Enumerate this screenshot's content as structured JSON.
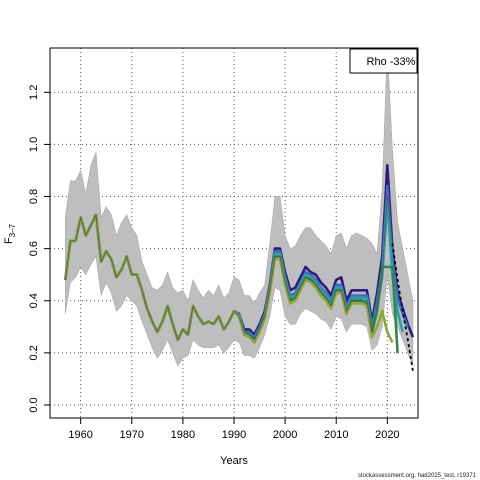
{
  "chart_data": {
    "type": "line",
    "xlabel": "Years",
    "ylabel": "F",
    "ylabel_sub": "3–7",
    "xlim": [
      1954,
      2026
    ],
    "ylim": [
      -0.05,
      1.37
    ],
    "x_ticks": [
      1960,
      1970,
      1980,
      1990,
      2000,
      2010,
      2020
    ],
    "y_ticks": [
      0.0,
      0.2,
      0.4,
      0.6,
      0.8,
      1.0,
      1.2
    ],
    "y_tick_labels": [
      "0.0",
      "0.2",
      "0.4",
      "0.6",
      "0.8",
      "1.0",
      "1.2"
    ],
    "grid": true,
    "legend_text": "Rho -33%",
    "legend_position": "top-right",
    "footer": "stockassessment.org, had2025_test, r19371",
    "colors": {
      "band": "#bebebe",
      "band_edge": "#a8a8a8",
      "estimate": "#555555",
      "projection": "#000000"
    },
    "confidence_band": {
      "x": [
        1957,
        1958,
        1959,
        1960,
        1961,
        1962,
        1963,
        1964,
        1965,
        1966,
        1967,
        1968,
        1969,
        1970,
        1971,
        1972,
        1973,
        1974,
        1975,
        1976,
        1977,
        1978,
        1979,
        1980,
        1981,
        1982,
        1983,
        1984,
        1985,
        1986,
        1987,
        1988,
        1989,
        1990,
        1991,
        1992,
        1993,
        1994,
        1995,
        1996,
        1997,
        1998,
        1999,
        2000,
        2001,
        2002,
        2003,
        2004,
        2005,
        2006,
        2007,
        2008,
        2009,
        2010,
        2011,
        2012,
        2013,
        2014,
        2015,
        2016,
        2017,
        2018,
        2019,
        2020,
        2021,
        2022,
        2023,
        2024,
        2025
      ],
      "lower": [
        0.35,
        0.47,
        0.49,
        0.53,
        0.5,
        0.54,
        0.57,
        0.42,
        0.47,
        0.43,
        0.36,
        0.38,
        0.42,
        0.4,
        0.38,
        0.32,
        0.27,
        0.22,
        0.18,
        0.21,
        0.25,
        0.2,
        0.15,
        0.18,
        0.19,
        0.25,
        0.23,
        0.22,
        0.22,
        0.22,
        0.23,
        0.2,
        0.22,
        0.25,
        0.24,
        0.19,
        0.19,
        0.18,
        0.22,
        0.27,
        0.34,
        0.45,
        0.44,
        0.34,
        0.31,
        0.31,
        0.35,
        0.37,
        0.36,
        0.35,
        0.33,
        0.32,
        0.29,
        0.34,
        0.33,
        0.28,
        0.31,
        0.31,
        0.31,
        0.3,
        0.21,
        0.23,
        0.3,
        0.5,
        0.35,
        0.3,
        0.25,
        0.2,
        0.15
      ],
      "upper": [
        0.72,
        0.86,
        0.86,
        0.9,
        0.81,
        0.92,
        0.97,
        0.72,
        0.76,
        0.73,
        0.65,
        0.7,
        0.73,
        0.68,
        0.65,
        0.55,
        0.5,
        0.45,
        0.44,
        0.46,
        0.51,
        0.45,
        0.43,
        0.44,
        0.4,
        0.48,
        0.44,
        0.41,
        0.44,
        0.42,
        0.46,
        0.41,
        0.43,
        0.49,
        0.48,
        0.42,
        0.42,
        0.39,
        0.43,
        0.46,
        0.62,
        0.8,
        0.8,
        0.65,
        0.6,
        0.61,
        0.65,
        0.68,
        0.68,
        0.65,
        0.63,
        0.61,
        0.58,
        0.65,
        0.66,
        0.6,
        0.65,
        0.66,
        0.65,
        0.64,
        0.62,
        0.58,
        0.83,
        1.37,
        0.98,
        0.7,
        0.6,
        0.5,
        0.4
      ]
    },
    "series": [
      {
        "color": "#2e1a7c",
        "x": [
          1957,
          1958,
          1959,
          1960,
          1961,
          1962,
          1963,
          1964,
          1965,
          1966,
          1967,
          1968,
          1969,
          1970,
          1971,
          1972,
          1973,
          1974,
          1975,
          1976,
          1977,
          1978,
          1979,
          1980,
          1981,
          1982,
          1983,
          1984,
          1985,
          1986,
          1987,
          1988,
          1989,
          1990,
          1991,
          1992,
          1993,
          1994,
          1995,
          1996,
          1997,
          1998,
          1999,
          2000,
          2001,
          2002,
          2003,
          2004,
          2005,
          2006,
          2007,
          2008,
          2009,
          2010,
          2011,
          2012,
          2013,
          2014,
          2015,
          2016,
          2017,
          2018,
          2019,
          2020,
          2021,
          2022,
          2023,
          2024,
          2025
        ],
        "y": [
          0.48,
          0.63,
          0.63,
          0.72,
          0.65,
          0.69,
          0.73,
          0.55,
          0.59,
          0.56,
          0.49,
          0.52,
          0.57,
          0.5,
          0.5,
          0.44,
          0.37,
          0.32,
          0.28,
          0.32,
          0.38,
          0.31,
          0.25,
          0.29,
          0.27,
          0.38,
          0.34,
          0.31,
          0.32,
          0.31,
          0.34,
          0.29,
          0.32,
          0.36,
          0.35,
          0.29,
          0.29,
          0.27,
          0.31,
          0.36,
          0.46,
          0.6,
          0.6,
          0.51,
          0.44,
          0.45,
          0.49,
          0.53,
          0.51,
          0.5,
          0.47,
          0.45,
          0.42,
          0.48,
          0.49,
          0.4,
          0.44,
          0.44,
          0.44,
          0.44,
          0.32,
          0.43,
          0.57,
          0.92,
          0.6,
          0.43,
          0.37,
          0.31,
          0.26
        ]
      },
      {
        "color": "#3b6bc9",
        "x": [
          1957,
          1958,
          1959,
          1960,
          1961,
          1962,
          1963,
          1964,
          1965,
          1966,
          1967,
          1968,
          1969,
          1970,
          1971,
          1972,
          1973,
          1974,
          1975,
          1976,
          1977,
          1978,
          1979,
          1980,
          1981,
          1982,
          1983,
          1984,
          1985,
          1986,
          1987,
          1988,
          1989,
          1990,
          1991,
          1992,
          1993,
          1994,
          1995,
          1996,
          1997,
          1998,
          1999,
          2000,
          2001,
          2002,
          2003,
          2004,
          2005,
          2006,
          2007,
          2008,
          2009,
          2010,
          2011,
          2012,
          2013,
          2014,
          2015,
          2016,
          2017,
          2018,
          2019,
          2020,
          2021,
          2022,
          2023,
          2024
        ],
        "y": [
          0.48,
          0.63,
          0.63,
          0.72,
          0.65,
          0.69,
          0.73,
          0.55,
          0.59,
          0.56,
          0.49,
          0.52,
          0.57,
          0.5,
          0.5,
          0.44,
          0.37,
          0.32,
          0.28,
          0.32,
          0.38,
          0.31,
          0.25,
          0.29,
          0.27,
          0.38,
          0.34,
          0.31,
          0.32,
          0.31,
          0.34,
          0.29,
          0.32,
          0.36,
          0.35,
          0.28,
          0.28,
          0.26,
          0.3,
          0.35,
          0.45,
          0.59,
          0.59,
          0.49,
          0.42,
          0.43,
          0.47,
          0.51,
          0.5,
          0.48,
          0.45,
          0.43,
          0.4,
          0.46,
          0.46,
          0.38,
          0.42,
          0.42,
          0.42,
          0.42,
          0.3,
          0.4,
          0.52,
          0.84,
          0.56,
          0.41,
          0.35,
          0.3
        ]
      },
      {
        "color": "#2aa0a6",
        "x": [
          1957,
          1958,
          1959,
          1960,
          1961,
          1962,
          1963,
          1964,
          1965,
          1966,
          1967,
          1968,
          1969,
          1970,
          1971,
          1972,
          1973,
          1974,
          1975,
          1976,
          1977,
          1978,
          1979,
          1980,
          1981,
          1982,
          1983,
          1984,
          1985,
          1986,
          1987,
          1988,
          1989,
          1990,
          1991,
          1992,
          1993,
          1994,
          1995,
          1996,
          1997,
          1998,
          1999,
          2000,
          2001,
          2002,
          2003,
          2004,
          2005,
          2006,
          2007,
          2008,
          2009,
          2010,
          2011,
          2012,
          2013,
          2014,
          2015,
          2016,
          2017,
          2018,
          2019,
          2020,
          2021,
          2022,
          2023
        ],
        "y": [
          0.48,
          0.63,
          0.63,
          0.72,
          0.65,
          0.69,
          0.73,
          0.55,
          0.59,
          0.56,
          0.49,
          0.52,
          0.57,
          0.5,
          0.5,
          0.44,
          0.37,
          0.32,
          0.28,
          0.32,
          0.38,
          0.31,
          0.25,
          0.29,
          0.27,
          0.38,
          0.34,
          0.31,
          0.32,
          0.31,
          0.34,
          0.29,
          0.32,
          0.36,
          0.34,
          0.27,
          0.27,
          0.25,
          0.29,
          0.34,
          0.44,
          0.58,
          0.58,
          0.48,
          0.41,
          0.42,
          0.46,
          0.5,
          0.49,
          0.47,
          0.44,
          0.42,
          0.39,
          0.45,
          0.45,
          0.37,
          0.41,
          0.41,
          0.41,
          0.41,
          0.29,
          0.37,
          0.49,
          0.78,
          0.5,
          0.36,
          0.28
        ]
      },
      {
        "color": "#2e8b45",
        "x": [
          1957,
          1958,
          1959,
          1960,
          1961,
          1962,
          1963,
          1964,
          1965,
          1966,
          1967,
          1968,
          1969,
          1970,
          1971,
          1972,
          1973,
          1974,
          1975,
          1976,
          1977,
          1978,
          1979,
          1980,
          1981,
          1982,
          1983,
          1984,
          1985,
          1986,
          1987,
          1988,
          1989,
          1990,
          1991,
          1992,
          1993,
          1994,
          1995,
          1996,
          1997,
          1998,
          1999,
          2000,
          2001,
          2002,
          2003,
          2004,
          2005,
          2006,
          2007,
          2008,
          2009,
          2010,
          2011,
          2012,
          2013,
          2014,
          2015,
          2016,
          2017,
          2018,
          2019,
          2020,
          2021,
          2022
        ],
        "y": [
          0.48,
          0.63,
          0.63,
          0.72,
          0.65,
          0.69,
          0.73,
          0.55,
          0.59,
          0.56,
          0.49,
          0.52,
          0.57,
          0.5,
          0.5,
          0.44,
          0.37,
          0.32,
          0.28,
          0.32,
          0.38,
          0.31,
          0.25,
          0.29,
          0.27,
          0.38,
          0.34,
          0.31,
          0.32,
          0.31,
          0.34,
          0.29,
          0.32,
          0.36,
          0.34,
          0.27,
          0.27,
          0.25,
          0.29,
          0.34,
          0.44,
          0.57,
          0.57,
          0.47,
          0.4,
          0.41,
          0.45,
          0.49,
          0.48,
          0.46,
          0.43,
          0.41,
          0.38,
          0.44,
          0.44,
          0.36,
          0.4,
          0.4,
          0.4,
          0.39,
          0.28,
          0.36,
          0.53,
          0.53,
          0.53,
          0.2
        ]
      },
      {
        "color": "#8ea832",
        "x": [
          1957,
          1958,
          1959,
          1960,
          1961,
          1962,
          1963,
          1964,
          1965,
          1966,
          1967,
          1968,
          1969,
          1970,
          1971,
          1972,
          1973,
          1974,
          1975,
          1976,
          1977,
          1978,
          1979,
          1980,
          1981,
          1982,
          1983,
          1984,
          1985,
          1986,
          1987,
          1988,
          1989,
          1990,
          1991,
          1992,
          1993,
          1994,
          1995,
          1996,
          1997,
          1998,
          1999,
          2000,
          2001,
          2002,
          2003,
          2004,
          2005,
          2006,
          2007,
          2008,
          2009,
          2010,
          2011,
          2012,
          2013,
          2014,
          2015,
          2016,
          2017,
          2018,
          2019,
          2020,
          2021
        ],
        "y": [
          0.48,
          0.63,
          0.63,
          0.72,
          0.65,
          0.69,
          0.73,
          0.55,
          0.59,
          0.56,
          0.49,
          0.52,
          0.57,
          0.5,
          0.5,
          0.44,
          0.37,
          0.32,
          0.28,
          0.32,
          0.38,
          0.31,
          0.25,
          0.29,
          0.27,
          0.38,
          0.34,
          0.31,
          0.32,
          0.31,
          0.34,
          0.29,
          0.32,
          0.36,
          0.34,
          0.27,
          0.26,
          0.24,
          0.28,
          0.33,
          0.43,
          0.56,
          0.56,
          0.46,
          0.39,
          0.4,
          0.44,
          0.48,
          0.47,
          0.45,
          0.42,
          0.4,
          0.37,
          0.43,
          0.43,
          0.35,
          0.39,
          0.39,
          0.39,
          0.38,
          0.26,
          0.3,
          0.36,
          0.28,
          0.24
        ]
      }
    ],
    "estimate_line": {
      "x": [
        1957,
        1958,
        1959,
        1960,
        1961,
        1962,
        1963,
        1964,
        1965,
        1966,
        1967,
        1968,
        1969,
        1970,
        1971,
        1972,
        1973,
        1974,
        1975,
        1976,
        1977,
        1978,
        1979,
        1980,
        1981,
        1982,
        1983,
        1984,
        1985,
        1986,
        1987,
        1988,
        1989,
        1990,
        1991,
        1992,
        1993,
        1994,
        1995,
        1996,
        1997,
        1998,
        1999,
        2000,
        2001,
        2002,
        2003,
        2004,
        2005,
        2006,
        2007,
        2008,
        2009,
        2010,
        2011,
        2012,
        2013,
        2014,
        2015,
        2016,
        2017,
        2018,
        2019,
        2020,
        2021
      ],
      "y": [
        0.48,
        0.63,
        0.63,
        0.72,
        0.65,
        0.69,
        0.73,
        0.55,
        0.59,
        0.56,
        0.49,
        0.52,
        0.57,
        0.5,
        0.5,
        0.44,
        0.37,
        0.32,
        0.28,
        0.32,
        0.38,
        0.31,
        0.25,
        0.29,
        0.27,
        0.38,
        0.34,
        0.31,
        0.32,
        0.31,
        0.34,
        0.29,
        0.32,
        0.36,
        0.34,
        0.28,
        0.27,
        0.25,
        0.29,
        0.34,
        0.44,
        0.57,
        0.57,
        0.47,
        0.4,
        0.41,
        0.45,
        0.49,
        0.48,
        0.46,
        0.43,
        0.41,
        0.38,
        0.44,
        0.44,
        0.36,
        0.4,
        0.4,
        0.4,
        0.4,
        0.28,
        0.38,
        0.5,
        0.8,
        0.62
      ]
    },
    "projection_line": {
      "x": [
        2021,
        2022,
        2023,
        2024,
        2025
      ],
      "y": [
        0.62,
        0.48,
        0.36,
        0.25,
        0.13
      ]
    }
  }
}
